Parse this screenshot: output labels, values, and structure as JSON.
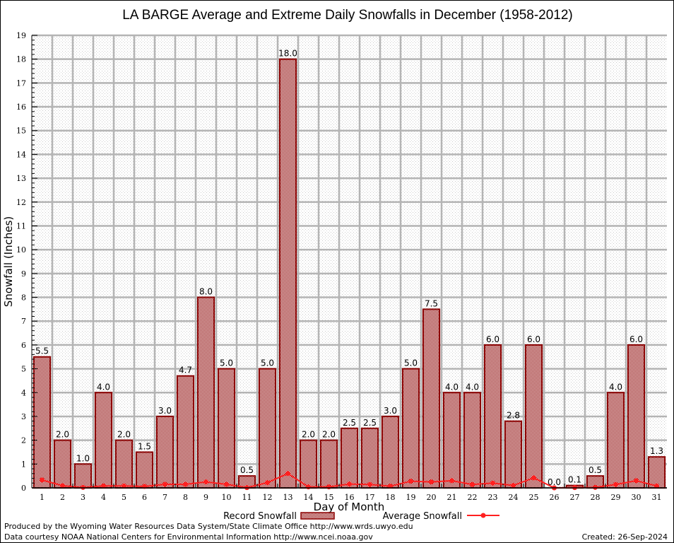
{
  "chart_data": {
    "type": "bar",
    "title": "LA BARGE Average and Extreme Daily Snowfalls in December (1958-2012)",
    "xlabel": "Day of Month",
    "ylabel": "Snowfall (Inches)",
    "ylim": [
      0,
      19
    ],
    "yticks": [
      0,
      1,
      2,
      3,
      4,
      5,
      6,
      7,
      8,
      9,
      10,
      11,
      12,
      13,
      14,
      15,
      16,
      17,
      18,
      19
    ],
    "grid": true,
    "categories": [
      "1",
      "2",
      "3",
      "4",
      "5",
      "6",
      "7",
      "8",
      "9",
      "10",
      "11",
      "12",
      "13",
      "14",
      "15",
      "16",
      "17",
      "18",
      "19",
      "20",
      "21",
      "22",
      "23",
      "24",
      "25",
      "26",
      "27",
      "28",
      "29",
      "30",
      "31"
    ],
    "series": [
      {
        "name": "Record Snowfall",
        "kind": "bar",
        "color": "#8b0000",
        "values": [
          5.5,
          2.0,
          1.0,
          4.0,
          2.0,
          1.5,
          3.0,
          4.7,
          8.0,
          5.0,
          0.5,
          5.0,
          18.0,
          2.0,
          2.0,
          2.5,
          2.5,
          3.0,
          5.0,
          7.5,
          4.0,
          4.0,
          6.0,
          2.8,
          6.0,
          0.0,
          0.1,
          0.5,
          4.0,
          6.0,
          1.3
        ],
        "labels": [
          "5.5",
          "2.0",
          "1.0",
          "4.0",
          "2.0",
          "1.5",
          "3.0",
          "4.7",
          "8.0",
          "5.0",
          "0.5",
          "5.0",
          "18.0",
          "2.0",
          "2.0",
          "2.5",
          "2.5",
          "3.0",
          "5.0",
          "7.5",
          "4.0",
          "4.0",
          "6.0",
          "2.8",
          "6.0",
          "0.0",
          "0.1",
          "0.5",
          "4.0",
          "6.0",
          "1.3"
        ]
      },
      {
        "name": "Average Snowfall",
        "kind": "line",
        "color": "#ff2020",
        "values": [
          0.33,
          0.09,
          0.02,
          0.08,
          0.08,
          0.06,
          0.15,
          0.15,
          0.25,
          0.15,
          0.01,
          0.22,
          0.6,
          0.04,
          0.04,
          0.16,
          0.14,
          0.07,
          0.28,
          0.25,
          0.3,
          0.14,
          0.2,
          0.1,
          0.42,
          0.0,
          0.01,
          0.02,
          0.14,
          0.3,
          0.08
        ]
      }
    ],
    "legend": {
      "placement": "bottom-center",
      "entries": [
        "Record Snowfall",
        "Average Snowfall"
      ]
    }
  },
  "footer": {
    "line1": "Produced by the Wyoming Water Resources Data System/State Climate Office http://www.wrds.uwyo.edu",
    "line2": "Data courtesy NOAA National Centers for Environmental Information http://www.ncei.noaa.gov",
    "created": "Created:  26-Sep-2024"
  }
}
